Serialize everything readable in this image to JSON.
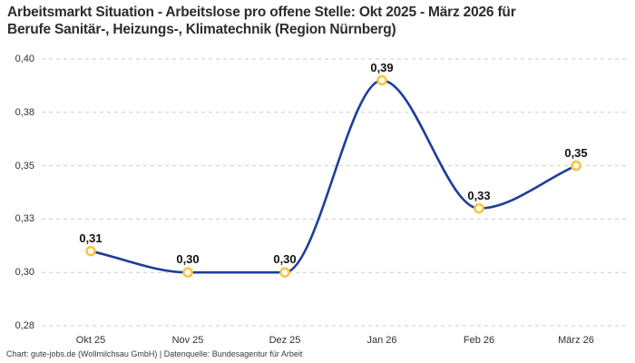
{
  "title_lines": [
    "Arbeitsmarkt Situation - Arbeitslose pro offene Stelle: Okt 2025 - März 2026 für",
    "Berufe Sanitär-, Heizungs-, Klimatechnik (Region Nürnberg)"
  ],
  "footer": "Chart: gute-jobs.de (Wollmilchsau GmbH) | Datenquelle: Bundesagentur für Arbeit",
  "colors": {
    "line": "#1e3d9b",
    "marker_stroke": "#fcc43e",
    "marker_fill": "#ffffff",
    "grid": "#cccccc",
    "title": "#2d2d2d",
    "tick": "#303030",
    "point_label": "#111111"
  },
  "chart_data": {
    "type": "line",
    "title": "Arbeitsmarkt Situation - Arbeitslose pro offene Stelle: Okt 2025 - März 2026 für Berufe Sanitär-, Heizungs-, Klimatechnik (Region Nürnberg)",
    "categories": [
      "Okt 25",
      "Nov 25",
      "Dez 25",
      "Jan 26",
      "Feb 26",
      "März 26"
    ],
    "values": [
      0.31,
      0.3,
      0.3,
      0.39,
      0.33,
      0.35
    ],
    "value_labels": [
      "0,31",
      "0,30",
      "0,30",
      "0,39",
      "0,33",
      "0,35"
    ],
    "xlabel": "",
    "ylabel": "",
    "ylim": [
      0.275,
      0.4
    ],
    "yticks": {
      "values": [
        0.4,
        0.375,
        0.35,
        0.325,
        0.3,
        0.275
      ],
      "labels": [
        "0,40",
        "0,38",
        "0,35",
        "0,33",
        "0,30",
        "0,28"
      ]
    },
    "grid": "horizontal-dashed",
    "legend": "none",
    "curve": "monotone",
    "source": "Bundesagentur für Arbeit"
  }
}
